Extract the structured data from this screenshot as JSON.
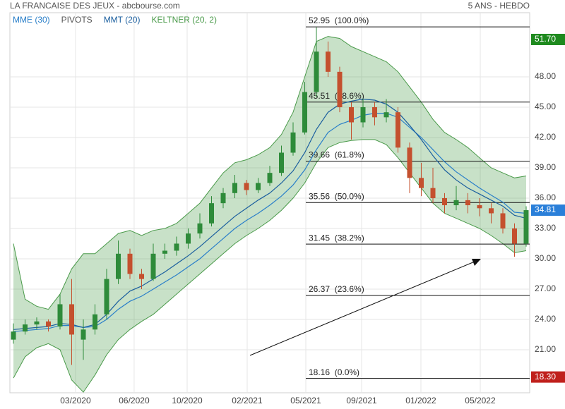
{
  "chart_data": {
    "type": "candlestick",
    "title": "LA FRANCAISE DES JEUX - abcbourse.com",
    "subtitle": "5 ANS - HEBDO",
    "open": [
      22.0,
      22.8,
      23.5,
      23.8,
      23.3,
      25.5,
      22.0,
      23.0,
      24.5,
      28.0,
      30.5,
      28.5,
      28.0,
      30.5,
      30.8,
      31.5,
      32.5,
      33.5,
      35.5,
      36.5,
      37.5,
      36.8,
      37.5,
      38.5,
      40.5,
      42.5,
      46.5,
      50.5,
      48.5,
      45.0,
      43.5,
      45.0,
      44.0,
      44.5,
      41.0,
      38.0,
      37.0,
      36.0,
      35.3,
      35.8,
      35.3,
      35.0,
      34.5,
      33.0,
      31.5
    ],
    "high": [
      23.6,
      24.0,
      24.2,
      24.0,
      26.5,
      28.0,
      24.0,
      25.5,
      29.0,
      31.8,
      31.0,
      29.0,
      31.5,
      31.5,
      32.2,
      33.0,
      34.5,
      36.2,
      37.0,
      38.3,
      37.8,
      38.0,
      39.2,
      41.2,
      43.5,
      47.5,
      52.9,
      51.5,
      49.0,
      45.5,
      45.8,
      45.5,
      45.8,
      45.0,
      41.5,
      39.5,
      39.0,
      36.5,
      37.2,
      36.5,
      36.0,
      35.5,
      35.0,
      33.5,
      35.2
    ],
    "low": [
      21.6,
      22.5,
      23.0,
      22.8,
      23.0,
      19.5,
      20.0,
      22.5,
      24.0,
      27.5,
      28.0,
      27.0,
      27.8,
      30.0,
      30.3,
      31.0,
      32.0,
      33.2,
      35.0,
      36.0,
      36.3,
      36.5,
      37.2,
      38.2,
      40.2,
      42.3,
      46.0,
      48.0,
      44.5,
      41.8,
      43.0,
      43.2,
      43.5,
      40.5,
      36.5,
      36.2,
      35.5,
      34.5,
      34.8,
      34.5,
      34.2,
      33.5,
      32.5,
      30.2,
      31.2
    ],
    "close": [
      22.8,
      23.5,
      23.8,
      23.3,
      25.5,
      22.5,
      23.0,
      24.5,
      28.0,
      30.5,
      28.5,
      28.0,
      30.5,
      30.8,
      31.5,
      32.5,
      33.5,
      35.5,
      36.5,
      37.5,
      36.8,
      37.5,
      38.5,
      40.5,
      42.5,
      46.5,
      50.5,
      48.5,
      45.0,
      43.5,
      45.0,
      44.0,
      44.5,
      41.0,
      38.0,
      37.0,
      36.0,
      35.3,
      35.8,
      35.3,
      35.0,
      34.5,
      33.0,
      31.5,
      34.81
    ],
    "up_color": "#2e8b3a",
    "down_color": "#c4502e",
    "indicators": [
      {
        "name": "MME (30)",
        "color": "#2a7fc9",
        "values": [
          22.8,
          22.9,
          23.0,
          23.1,
          23.4,
          23.4,
          23.2,
          23.3,
          24.0,
          25.0,
          25.8,
          26.3,
          27.0,
          27.7,
          28.4,
          29.2,
          30.0,
          31.0,
          32.0,
          33.0,
          33.8,
          34.5,
          35.3,
          36.2,
          37.3,
          38.8,
          40.8,
          42.5,
          43.3,
          43.7,
          44.2,
          44.4,
          44.4,
          44.0,
          43.0,
          42.0,
          40.8,
          39.6,
          38.6,
          37.8,
          37.0,
          36.3,
          35.6,
          34.6,
          34.5
        ]
      },
      {
        "name": "PIVOTS",
        "color": "#555555"
      },
      {
        "name": "MMT (20)",
        "color": "#1a5e9e",
        "values": [
          23.0,
          23.1,
          23.2,
          23.3,
          23.6,
          23.5,
          23.2,
          23.5,
          24.5,
          25.8,
          26.8,
          27.3,
          28.0,
          28.7,
          29.5,
          30.3,
          31.2,
          32.2,
          33.2,
          34.2,
          35.0,
          35.8,
          36.5,
          37.5,
          38.7,
          40.5,
          42.8,
          44.5,
          45.3,
          45.6,
          45.8,
          45.7,
          45.3,
          44.5,
          43.2,
          41.8,
          40.2,
          38.8,
          37.8,
          37.0,
          36.4,
          35.8,
          35.2,
          34.3,
          34.0
        ]
      },
      {
        "name": "KELTNER (20, 2)",
        "color": "#4a9a4a",
        "upper": [
          31.5,
          26.0,
          25.3,
          25.0,
          26.5,
          29.0,
          30.5,
          30.5,
          31.5,
          32.5,
          32.8,
          32.3,
          32.8,
          33.0,
          33.5,
          34.5,
          35.5,
          37.0,
          38.5,
          39.5,
          39.8,
          40.3,
          41.0,
          42.3,
          44.5,
          48.0,
          51.5,
          52.0,
          51.8,
          51.0,
          50.5,
          50.0,
          49.5,
          48.5,
          47.0,
          45.5,
          43.8,
          42.5,
          41.8,
          41.0,
          40.0,
          39.0,
          38.5,
          38.0,
          38.2
        ],
        "lower": [
          18.2,
          20.3,
          21.2,
          21.6,
          21.0,
          18.0,
          16.8,
          18.5,
          20.5,
          22.0,
          23.0,
          23.8,
          24.5,
          25.5,
          26.5,
          27.5,
          28.5,
          29.5,
          30.5,
          31.5,
          32.3,
          33.0,
          33.8,
          34.8,
          36.0,
          37.5,
          39.5,
          41.0,
          41.5,
          41.7,
          41.8,
          41.8,
          41.3,
          40.0,
          38.5,
          37.0,
          35.5,
          34.5,
          34.0,
          33.5,
          33.0,
          32.3,
          31.5,
          30.6,
          30.8
        ]
      }
    ],
    "fibonacci": [
      {
        "value": 52.95,
        "label": "52.95  (100.0%)"
      },
      {
        "value": 45.51,
        "label": "45.51  (78.6%)"
      },
      {
        "value": 39.66,
        "label": "39.66  (61.8%)"
      },
      {
        "value": 35.56,
        "label": "35.56  (50.0%)"
      },
      {
        "value": 31.45,
        "label": "31.45  (38.2%)"
      },
      {
        "value": 26.37,
        "label": "26.37  (23.6%)"
      },
      {
        "value": 18.16,
        "label": "18.16  (0.0%)"
      }
    ],
    "price_tags": [
      {
        "value": 51.7,
        "label": "51.70",
        "color": "#1e8a1e"
      },
      {
        "value": 34.81,
        "label": "34.81",
        "color": "#2a7fd9"
      },
      {
        "value": 18.3,
        "label": "18.30",
        "color": "#c0201c"
      }
    ],
    "ylim": [
      16.74,
      54.35
    ],
    "yticks": [
      {
        "value": 21,
        "label": "21.00"
      },
      {
        "value": 24,
        "label": "24.00"
      },
      {
        "value": 27,
        "label": "27.00"
      },
      {
        "value": 30,
        "label": "30.00"
      },
      {
        "value": 33,
        "label": "33.00"
      },
      {
        "value": 36,
        "label": "36.00"
      },
      {
        "value": 39,
        "label": "39.00"
      },
      {
        "value": 42,
        "label": "42.00"
      },
      {
        "value": 45,
        "label": "45.00"
      },
      {
        "value": 48,
        "label": "48.00"
      }
    ],
    "xticks": [
      {
        "value": 5.33,
        "label": "03/2020"
      },
      {
        "value": 10.36,
        "label": "06/2020"
      },
      {
        "value": 14.91,
        "label": "10/2020"
      },
      {
        "value": 20.06,
        "label": "02/2021"
      },
      {
        "value": 25.09,
        "label": "05/2021"
      },
      {
        "value": 29.88,
        "label": "09/2021"
      },
      {
        "value": 34.97,
        "label": "01/2022"
      },
      {
        "value": 40.06,
        "label": "05/2022"
      }
    ],
    "grid": true
  }
}
